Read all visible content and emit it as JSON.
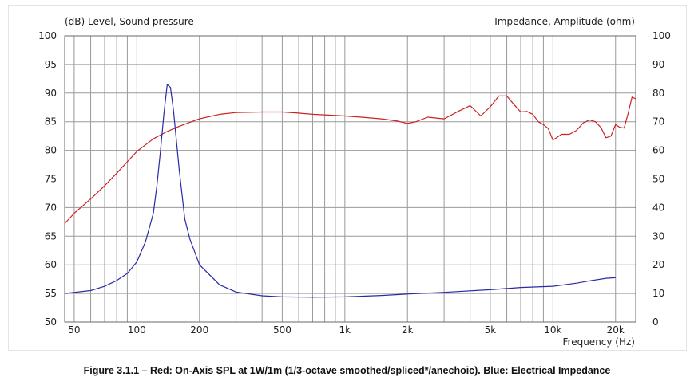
{
  "caption": "Figure 3.1.1  –  Red: On-Axis SPL at 1W/1m (1/3-octave smoothed/spliced*/anechoic). Blue: Electrical Impedance",
  "chart_data": {
    "type": "line",
    "title": "",
    "left_axis_label": "(dB)  Level, Sound pressure",
    "right_axis_label": "Impedance, Amplitude  (ohm)",
    "xlabel": "Frequency  (Hz)",
    "x_scale": "log",
    "xlim": [
      45,
      25000
    ],
    "ylim_left": [
      50,
      100
    ],
    "ylim_right": [
      0,
      100
    ],
    "x_ticks": [
      {
        "value": 50,
        "label": "50"
      },
      {
        "value": 100,
        "label": "100"
      },
      {
        "value": 200,
        "label": "200"
      },
      {
        "value": 500,
        "label": "500"
      },
      {
        "value": 1000,
        "label": "1k"
      },
      {
        "value": 2000,
        "label": "2k"
      },
      {
        "value": 5000,
        "label": "5k"
      },
      {
        "value": 10000,
        "label": "10k"
      },
      {
        "value": 20000,
        "label": "20k"
      }
    ],
    "y_ticks_left": [
      100,
      95,
      90,
      85,
      80,
      75,
      70,
      65,
      60,
      55,
      50
    ],
    "y_ticks_right": [
      100,
      90,
      80,
      70,
      60,
      50,
      40,
      30,
      20,
      10,
      0
    ],
    "grid": true,
    "colors": {
      "spl": "#cc2222",
      "impedance": "#2a2aa8",
      "grid": "#9a9a9a"
    },
    "series": [
      {
        "id": "spl",
        "axis": "left",
        "x": [
          45,
          50,
          60,
          70,
          80,
          90,
          100,
          120,
          140,
          160,
          180,
          200,
          250,
          300,
          400,
          500,
          600,
          700,
          800,
          1000,
          1200,
          1500,
          1800,
          2000,
          2200,
          2500,
          3000,
          3500,
          4000,
          4500,
          5000,
          5500,
          6000,
          6500,
          7000,
          7500,
          8000,
          8500,
          9000,
          9500,
          10000,
          11000,
          12000,
          13000,
          14000,
          15000,
          16000,
          17000,
          18000,
          19000,
          20000,
          21000,
          22000,
          23000,
          24000,
          25000
        ],
        "y": [
          67.2,
          69,
          71.5,
          73.8,
          76,
          78,
          79.8,
          82,
          83.3,
          84.2,
          84.9,
          85.5,
          86.3,
          86.6,
          86.7,
          86.7,
          86.5,
          86.3,
          86.2,
          86.0,
          85.8,
          85.5,
          85.1,
          84.7,
          85.0,
          85.8,
          85.5,
          86.8,
          87.8,
          86.0,
          87.6,
          89.5,
          89.5,
          88.0,
          86.7,
          86.8,
          86.3,
          85.0,
          84.5,
          83.8,
          81.8,
          82.8,
          82.8,
          83.5,
          84.8,
          85.3,
          85.0,
          84.0,
          82.2,
          82.5,
          84.5,
          84.0,
          83.9,
          86.5,
          89.3,
          89.0
        ]
      },
      {
        "id": "impedance",
        "axis": "right",
        "x": [
          45,
          60,
          70,
          80,
          90,
          100,
          110,
          120,
          125,
          130,
          135,
          140,
          145,
          150,
          160,
          170,
          180,
          200,
          250,
          300,
          400,
          500,
          700,
          1000,
          1500,
          2000,
          3000,
          5000,
          7000,
          10000,
          13000,
          15000,
          18000,
          20000
        ],
        "y": [
          10,
          11,
          12.5,
          14.5,
          17,
          21,
          28,
          38,
          48,
          60,
          73,
          83,
          82,
          74,
          53,
          36,
          29,
          20,
          13,
          10.5,
          9.2,
          8.8,
          8.7,
          8.8,
          9.3,
          9.8,
          10.4,
          11.3,
          12.1,
          12.5,
          13.6,
          14.4,
          15.3,
          15.5
        ]
      }
    ]
  }
}
